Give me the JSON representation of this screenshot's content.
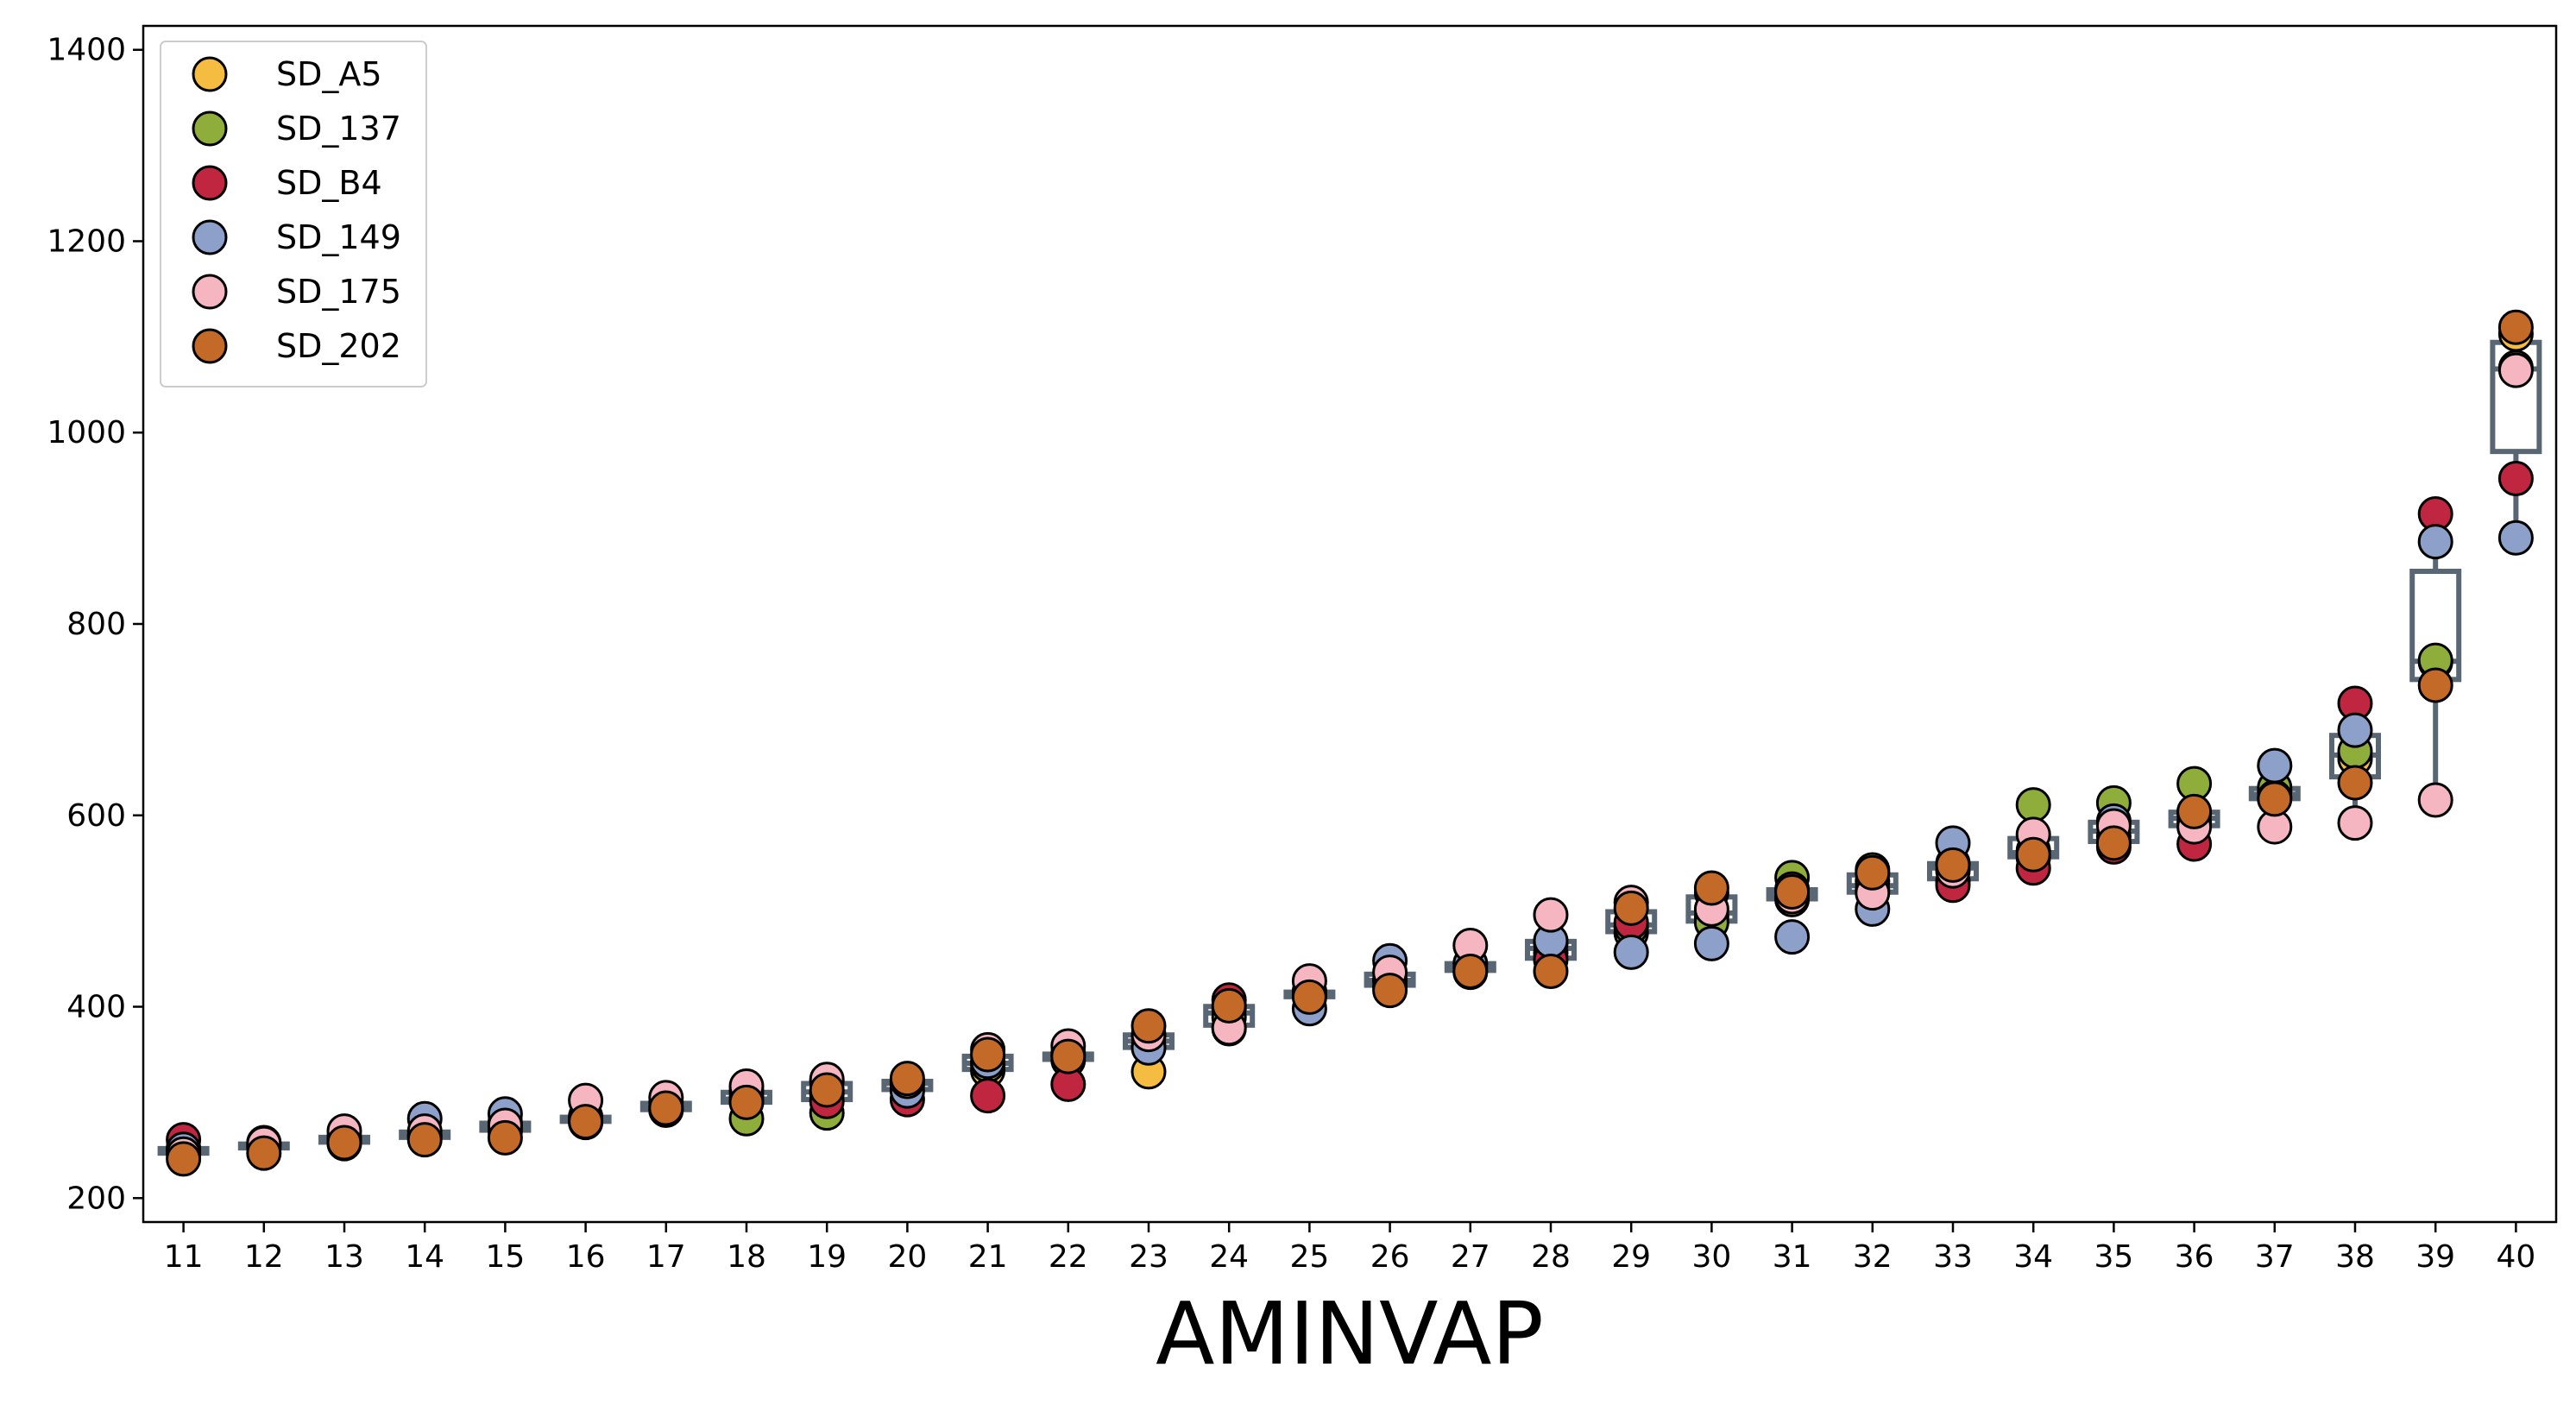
{
  "chart_data": {
    "type": "scatter",
    "overlay": "boxplot",
    "xlabel": "AMINVAP",
    "ylabel": "",
    "title": "",
    "categories": [
      "11",
      "12",
      "13",
      "14",
      "15",
      "16",
      "17",
      "18",
      "19",
      "20",
      "21",
      "22",
      "23",
      "24",
      "25",
      "26",
      "27",
      "28",
      "29",
      "30",
      "31",
      "32",
      "33",
      "34",
      "35",
      "36",
      "37",
      "38",
      "39",
      "40"
    ],
    "ylim": [
      175,
      1425
    ],
    "yticks": [
      200,
      400,
      600,
      800,
      1000,
      1200,
      1400
    ],
    "grid": false,
    "legend_position": "top-left",
    "box_color": "#596673",
    "median_color": "#596673",
    "series": [
      {
        "name": "SD_A5",
        "color": "#f5bc42",
        "values": [
          250,
          255,
          262,
          266,
          279,
          285,
          292,
          301,
          309,
          318,
          333,
          344,
          332,
          398,
          412,
          428,
          445,
          456,
          477,
          494,
          512,
          543,
          550,
          556,
          578,
          601,
          625,
          659,
          760,
          1103
        ]
      },
      {
        "name": "SD_137",
        "color": "#8fad3a",
        "values": [
          252,
          258,
          260,
          265,
          274,
          281,
          296,
          283,
          289,
          322,
          339,
          351,
          359,
          389,
          416,
          427,
          441,
          466,
          483,
          488,
          535,
          522,
          531,
          611,
          613,
          633,
          629,
          667,
          762,
          1068
        ]
      },
      {
        "name": "SD_B4",
        "color": "#c0263f",
        "values": [
          261,
          254,
          257,
          263,
          270,
          279,
          292,
          306,
          301,
          303,
          307,
          319,
          369,
          407,
          413,
          421,
          436,
          449,
          488,
          519,
          523,
          531,
          527,
          545,
          567,
          570,
          619,
          717,
          915,
          952
        ]
      },
      {
        "name": "SD_149",
        "color": "#8da0c9",
        "values": [
          251,
          252,
          264,
          283,
          288,
          283,
          300,
          312,
          322,
          312,
          343,
          349,
          357,
          377,
          398,
          448,
          445,
          469,
          457,
          466,
          473,
          502,
          571,
          563,
          594,
          593,
          652,
          689,
          886,
          890
        ]
      },
      {
        "name": "SD_175",
        "color": "#f5b6c1",
        "values": [
          246,
          257,
          270,
          270,
          276,
          302,
          305,
          317,
          324,
          322,
          355,
          359,
          371,
          378,
          427,
          436,
          464,
          496,
          509,
          502,
          515,
          519,
          542,
          580,
          589,
          588,
          588,
          592,
          616,
          1065
        ]
      },
      {
        "name": "SD_202",
        "color": "#c46a28",
        "values": [
          241,
          247,
          258,
          261,
          263,
          280,
          294,
          300,
          313,
          325,
          350,
          348,
          380,
          401,
          410,
          417,
          437,
          437,
          503,
          524,
          520,
          540,
          548,
          559,
          571,
          604,
          617,
          634,
          736,
          1110
        ]
      }
    ]
  }
}
